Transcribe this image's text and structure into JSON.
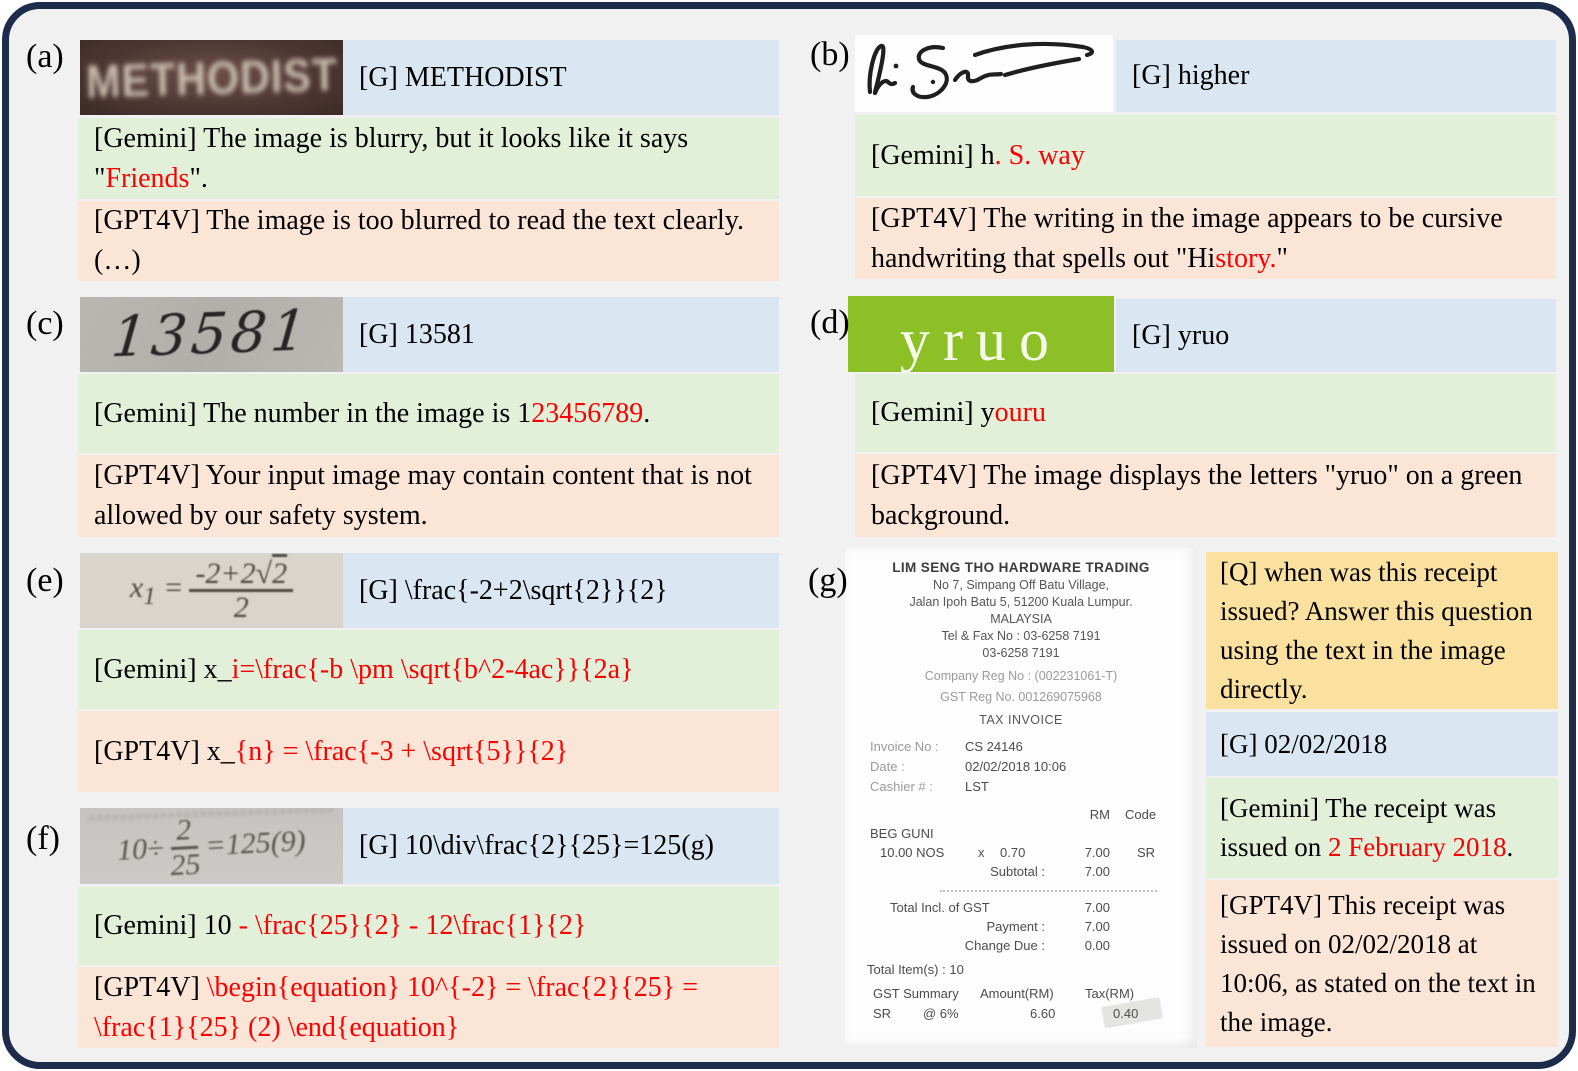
{
  "figure": {
    "description_labels": [
      "(a)",
      "(b)",
      "(c)",
      "(d)",
      "(e)",
      "(f)",
      "(g)"
    ]
  },
  "colors": {
    "frame_border": "#1c2c4a",
    "canvas_bg": "#f1f1f2",
    "ground_truth_blue": "#dae6f2",
    "gemini_green": "#e2efd9",
    "gpt4v_peach": "#fbe5d6",
    "question_gold": "#fbe1a0",
    "error_red": "#fa0000",
    "sample_green_bg": "#8cc026"
  },
  "samples": {
    "a": {
      "text": "METHODIST"
    },
    "b": {
      "word": "higher"
    },
    "c": {
      "text": "13581"
    },
    "d": {
      "text": "yruo"
    },
    "e": {
      "var": "x",
      "sub": "1",
      "eq": "=",
      "num_prefix": "-2+2√",
      "sqrt_arg": "2",
      "den": "2"
    },
    "f": {
      "pre": "10",
      "div": "÷",
      "num": "2",
      "den": "25",
      "post": "=125(9)"
    }
  },
  "panels": {
    "a": {
      "label": "(a)",
      "gt": "[G] METHODIST",
      "gemini": [
        {
          "t": "[Gemini] The image is blurry, but it looks like it says \""
        },
        {
          "t": "Friends",
          "red": true
        },
        {
          "t": "\"."
        }
      ],
      "gpt4v": [
        {
          "t": "[GPT4V] The image is too blurred to read the text clearly.  (…)"
        }
      ]
    },
    "b": {
      "label": "(b)",
      "gt": "[G] higher",
      "gemini": [
        {
          "t": "[Gemini] h"
        },
        {
          "t": ". S. way",
          "red": true
        }
      ],
      "gpt4v": [
        {
          "t": "[GPT4V] The writing in the image appears to be cursive handwriting that spells out \"Hi"
        },
        {
          "t": "story.",
          "red": true
        },
        {
          "t": "\""
        }
      ]
    },
    "c": {
      "label": "(c)",
      "gt": "[G] 13581",
      "gemini": [
        {
          "t": "[Gemini] The number in the image is 1"
        },
        {
          "t": "23456789",
          "red": true
        },
        {
          "t": "."
        }
      ],
      "gpt4v": [
        {
          "t": "[GPT4V] Your input image may contain content that is not allowed by our safety system."
        }
      ]
    },
    "d": {
      "label": "(d)",
      "gt": "[G] yruo",
      "gemini": [
        {
          "t": "[Gemini] y"
        },
        {
          "t": "ouru",
          "red": true
        }
      ],
      "gpt4v": [
        {
          "t": "[GPT4V] The image displays the letters \"yruo\" on a green background."
        }
      ]
    },
    "e": {
      "label": "(e)",
      "gt": "[G] \\frac{-2+2\\sqrt{2}}{2}",
      "gemini": [
        {
          "t": "[Gemini] x_"
        },
        {
          "t": "i=\\frac{-b \\pm \\sqrt{b^2-4ac}}{2a}",
          "red": true
        }
      ],
      "gpt4v": [
        {
          "t": "[GPT4V] x_"
        },
        {
          "t": "{n} = \\frac{-3 + \\sqrt{5}}{2}",
          "red": true
        }
      ]
    },
    "f": {
      "label": "(f)",
      "gt": "[G] 10\\div\\frac{2}{25}=125(g)",
      "gemini": [
        {
          "t": "[Gemini] 10 "
        },
        {
          "t": "- \\frac{25}{2} - 12\\frac{1}{2}",
          "red": true
        }
      ],
      "gpt4v": [
        {
          "t": "[GPT4V] "
        },
        {
          "t": "\\begin{equation} 10^{-2} = \\frac{2}{25} = \\frac{1}{25} (2) \\end{equation}",
          "red": true
        }
      ]
    },
    "g": {
      "label": "(g)",
      "question": "[Q] when was this receipt issued? Answer this question using the text in the image directly.",
      "gt": "[G] 02/02/2018",
      "gemini": [
        {
          "t": "[Gemini] The receipt was issued on "
        },
        {
          "t": "2 February 2018",
          "red": true
        },
        {
          "t": "."
        }
      ],
      "gpt4v": [
        {
          "t": "[GPT4V] This receipt was issued on 02/02/2018 at 10:06, as stated on the text in the image."
        }
      ]
    }
  },
  "receipt": {
    "header": [
      "LIM SENG THO HARDWARE TRADING",
      "No 7, Simpang Off Batu Village,",
      "Jalan Ipoh Batu 5, 51200 Kuala Lumpur.",
      "MALAYSIA",
      "Tel & Fax No : 03-6258 7191",
      "03-6258 7191"
    ],
    "reg1": "Company Reg No : (002231061-T)",
    "reg2": "GST Reg No. 001269075968",
    "doc_type": "TAX INVOICE",
    "info": [
      [
        "Invoice No :",
        "CS 24146"
      ],
      [
        "Date :",
        "02/02/2018 10:06"
      ],
      [
        "Cashier # :",
        "LST"
      ]
    ],
    "col_rm": "RM",
    "col_code": "Code",
    "item_name": "BEG GUNI",
    "item": [
      "10.00 NOS",
      "x",
      "0.70",
      "7.00",
      "SR"
    ],
    "subtotal_label": "Subtotal :",
    "subtotal": "7.00",
    "total_label": "Total Incl. of GST",
    "total": "7.00",
    "payment_label": "Payment :",
    "payment": "7.00",
    "change_label": "Change Due :",
    "change": "0.00",
    "items_count": "Total Item(s) : 10",
    "gst_header": [
      "GST Summary",
      "Amount(RM)",
      "Tax(RM)"
    ],
    "gst_row": [
      "SR",
      "@ 6%",
      "6.60",
      "0.40"
    ]
  }
}
